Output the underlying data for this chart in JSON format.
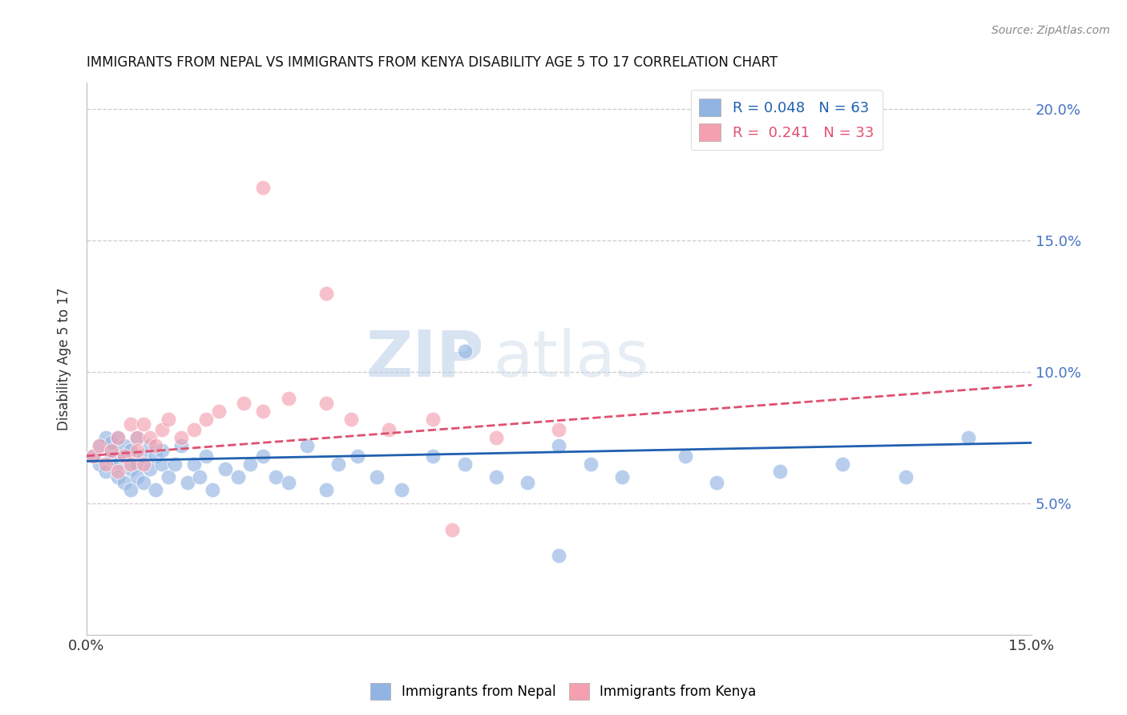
{
  "title": "IMMIGRANTS FROM NEPAL VS IMMIGRANTS FROM KENYA DISABILITY AGE 5 TO 17 CORRELATION CHART",
  "source": "Source: ZipAtlas.com",
  "ylabel": "Disability Age 5 to 17",
  "xlim": [
    0.0,
    0.15
  ],
  "ylim": [
    0.0,
    0.21
  ],
  "xticks": [
    0.0,
    0.03,
    0.06,
    0.09,
    0.12,
    0.15
  ],
  "xticklabels": [
    "0.0%",
    "",
    "",
    "",
    "",
    "15.0%"
  ],
  "yticks": [
    0.0,
    0.05,
    0.1,
    0.15,
    0.2
  ],
  "yticklabels": [
    "",
    "5.0%",
    "10.0%",
    "15.0%",
    "20.0%"
  ],
  "nepal_R": "0.048",
  "nepal_N": "63",
  "kenya_R": "0.241",
  "kenya_N": "33",
  "nepal_color": "#92b4e3",
  "kenya_color": "#f4a0b0",
  "nepal_line_color": "#2060b0",
  "kenya_line_color": "#e05070",
  "watermark_zip": "ZIP",
  "watermark_atlas": "atlas",
  "nepal_scatter_x": [
    0.001,
    0.002,
    0.002,
    0.003,
    0.003,
    0.004,
    0.004,
    0.004,
    0.005,
    0.005,
    0.005,
    0.006,
    0.006,
    0.006,
    0.007,
    0.007,
    0.007,
    0.008,
    0.008,
    0.008,
    0.009,
    0.009,
    0.01,
    0.01,
    0.011,
    0.011,
    0.012,
    0.012,
    0.013,
    0.014,
    0.015,
    0.016,
    0.017,
    0.018,
    0.019,
    0.02,
    0.022,
    0.024,
    0.026,
    0.028,
    0.03,
    0.032,
    0.035,
    0.038,
    0.04,
    0.043,
    0.046,
    0.05,
    0.055,
    0.06,
    0.065,
    0.07,
    0.075,
    0.08,
    0.085,
    0.095,
    0.1,
    0.11,
    0.12,
    0.13,
    0.06,
    0.075,
    0.14
  ],
  "nepal_scatter_y": [
    0.068,
    0.072,
    0.065,
    0.075,
    0.062,
    0.07,
    0.067,
    0.073,
    0.065,
    0.06,
    0.075,
    0.068,
    0.058,
    0.072,
    0.063,
    0.07,
    0.055,
    0.065,
    0.06,
    0.075,
    0.068,
    0.058,
    0.072,
    0.063,
    0.068,
    0.055,
    0.065,
    0.07,
    0.06,
    0.065,
    0.072,
    0.058,
    0.065,
    0.06,
    0.068,
    0.055,
    0.063,
    0.06,
    0.065,
    0.068,
    0.06,
    0.058,
    0.072,
    0.055,
    0.065,
    0.068,
    0.06,
    0.055,
    0.068,
    0.065,
    0.06,
    0.058,
    0.072,
    0.065,
    0.06,
    0.068,
    0.058,
    0.062,
    0.065,
    0.06,
    0.108,
    0.03,
    0.075
  ],
  "kenya_scatter_x": [
    0.001,
    0.002,
    0.003,
    0.004,
    0.005,
    0.005,
    0.006,
    0.007,
    0.007,
    0.008,
    0.008,
    0.009,
    0.009,
    0.01,
    0.011,
    0.012,
    0.013,
    0.015,
    0.017,
    0.019,
    0.021,
    0.025,
    0.028,
    0.032,
    0.038,
    0.042,
    0.048,
    0.055,
    0.065,
    0.075,
    0.028,
    0.038,
    0.058
  ],
  "kenya_scatter_y": [
    0.068,
    0.072,
    0.065,
    0.07,
    0.075,
    0.062,
    0.068,
    0.08,
    0.065,
    0.075,
    0.07,
    0.08,
    0.065,
    0.075,
    0.072,
    0.078,
    0.082,
    0.075,
    0.078,
    0.082,
    0.085,
    0.088,
    0.085,
    0.09,
    0.088,
    0.082,
    0.078,
    0.082,
    0.075,
    0.078,
    0.17,
    0.13,
    0.04
  ],
  "nepal_line_start_y": 0.066,
  "nepal_line_end_y": 0.073,
  "kenya_line_start_y": 0.068,
  "kenya_line_end_y": 0.095
}
